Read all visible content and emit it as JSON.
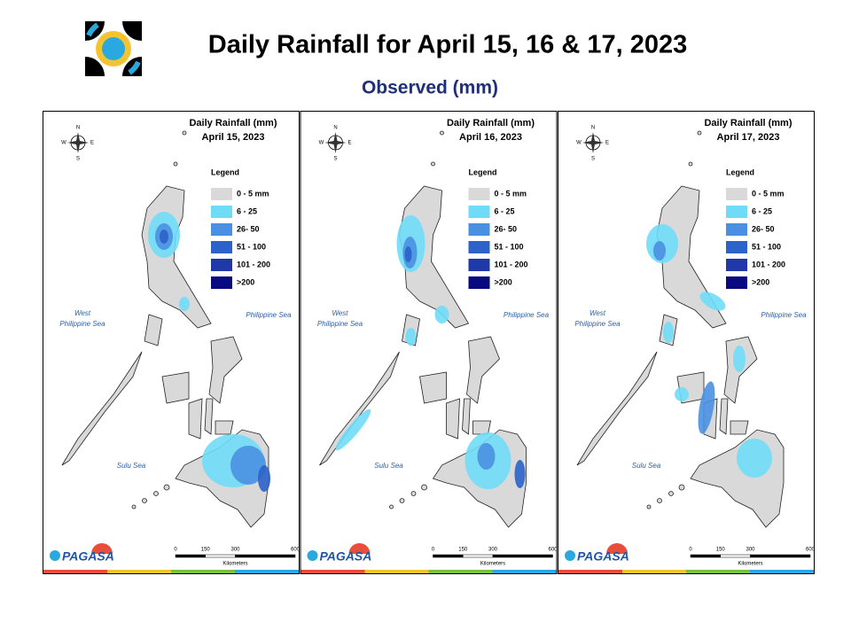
{
  "header": {
    "title": "Daily Rainfall for April 15, 16 & 17, 2023",
    "subtitle": "Observed (mm)"
  },
  "panels": [
    {
      "heading": "Daily Rainfall (mm)",
      "date": "April 15, 2023"
    },
    {
      "heading": "Daily Rainfall (mm)",
      "date": "April 16, 2023"
    },
    {
      "heading": "Daily Rainfall (mm)",
      "date": "April 17, 2023"
    }
  ],
  "legend": {
    "title": "Legend",
    "items": [
      {
        "label": "0 - 5 mm",
        "color": "#d9d9d9"
      },
      {
        "label": "6 - 25",
        "color": "#6fdcf7"
      },
      {
        "label": "26- 50",
        "color": "#4a90e2"
      },
      {
        "label": "51 - 100",
        "color": "#2c62c9"
      },
      {
        "label": "101 - 200",
        "color": "#1f3aa8"
      },
      {
        "label": ">200",
        "color": "#0a0a80"
      }
    ]
  },
  "compass": {
    "n": "N",
    "s": "S",
    "e": "E",
    "w": "W"
  },
  "seas": {
    "west_line1": "West",
    "west_line2": "Philippine Sea",
    "east": "Philippine Sea",
    "south": "Sulu Sea"
  },
  "scale": {
    "ticks": [
      0,
      150,
      300,
      600
    ],
    "unit": "Kilometers"
  },
  "logo": {
    "name": "PAGASA"
  }
}
